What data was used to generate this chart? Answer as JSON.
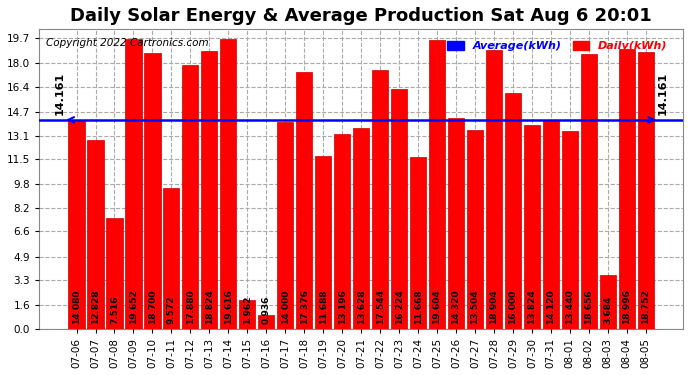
{
  "title": "Daily Solar Energy & Average Production Sat Aug 6 20:01",
  "copyright": "Copyright 2022 Cartronics.com",
  "average_label": "Average(kWh)",
  "daily_label": "Daily(kWh)",
  "average_value": 14.161,
  "categories": [
    "07-06",
    "07-07",
    "07-08",
    "07-09",
    "07-10",
    "07-11",
    "07-12",
    "07-13",
    "07-14",
    "07-15",
    "07-16",
    "07-17",
    "07-18",
    "07-19",
    "07-20",
    "07-21",
    "07-22",
    "07-23",
    "07-24",
    "07-25",
    "07-26",
    "07-27",
    "07-28",
    "07-29",
    "07-30",
    "07-31",
    "08-01",
    "08-02",
    "08-03",
    "08-04",
    "08-05"
  ],
  "values": [
    14.08,
    12.828,
    7.516,
    19.652,
    18.7,
    9.572,
    17.88,
    18.824,
    19.616,
    1.962,
    0.936,
    14.0,
    17.376,
    11.688,
    13.196,
    13.628,
    17.544,
    16.224,
    11.668,
    19.604,
    14.32,
    13.504,
    18.904,
    16.0,
    13.824,
    14.12,
    13.44,
    18.656,
    3.684,
    18.996,
    18.752
  ],
  "bar_color": "#ff0000",
  "bar_edge_color": "#cc0000",
  "avg_line_color": "#0000ff",
  "avg_text_color": "#000000",
  "title_color": "#000000",
  "copyright_color": "#000000",
  "background_color": "#ffffff",
  "grid_color": "#aaaaaa",
  "yticks": [
    0.0,
    1.6,
    3.3,
    4.9,
    6.6,
    8.2,
    9.8,
    11.5,
    13.1,
    14.7,
    16.4,
    18.0,
    19.7
  ],
  "ylim": [
    0.0,
    20.3
  ],
  "avg_line_label": "14.161",
  "value_fontsize": 6.5,
  "tick_fontsize": 7.5,
  "title_fontsize": 13
}
